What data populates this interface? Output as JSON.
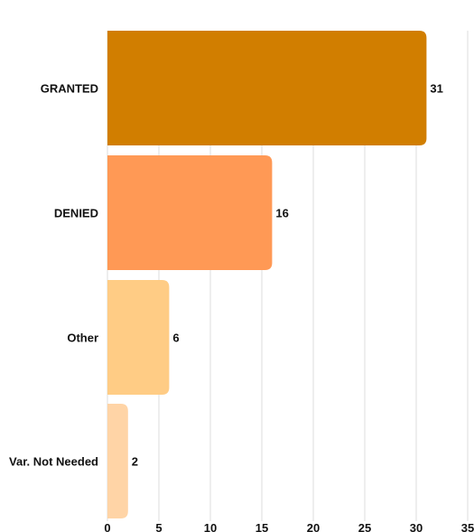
{
  "chart_data": {
    "type": "bar",
    "orientation": "horizontal",
    "categories": [
      "GRANTED",
      "DENIED",
      "Other",
      "Var. Not Needed"
    ],
    "values": [
      31,
      16,
      6,
      2
    ],
    "value_labels": [
      "31",
      "16",
      "6",
      "2"
    ],
    "colors": [
      "#D17E00",
      "#FF9955",
      "#FFCC85",
      "#FFD4A6"
    ],
    "xlim": [
      0,
      35
    ],
    "xticks": [
      0,
      5,
      10,
      15,
      20,
      25,
      30,
      35
    ],
    "xtick_labels": [
      "0",
      "5",
      "10",
      "15",
      "20",
      "25",
      "30",
      "35"
    ],
    "grid": true,
    "legend": "none",
    "title": "",
    "xlabel": "",
    "ylabel": ""
  }
}
